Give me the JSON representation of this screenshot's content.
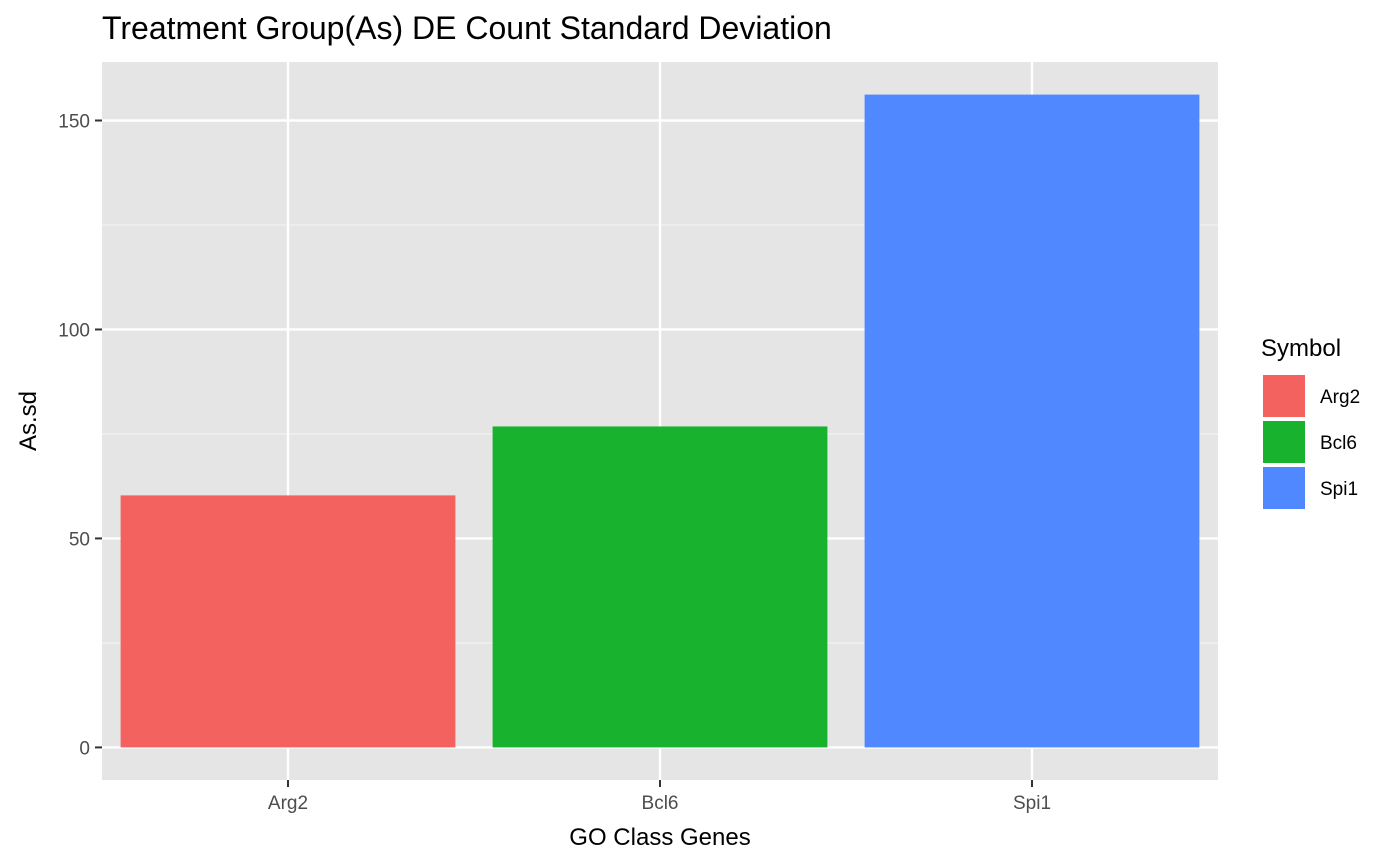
{
  "chart_data": {
    "type": "bar",
    "title": "Treatment Group(As) DE Count Standard Deviation",
    "xlabel": "GO Class Genes",
    "ylabel": "As.sd",
    "categories": [
      "Arg2",
      "Bcl6",
      "Spi1"
    ],
    "values": [
      60.3,
      76.8,
      156.2
    ],
    "colors": [
      "#F46260",
      "#19B22F",
      "#5088FF"
    ],
    "ylim": [
      -7.8,
      164
    ],
    "yticks": [
      0,
      50,
      100,
      150
    ],
    "grid": true,
    "panel_background": "#E5E5E5",
    "legend": {
      "title": "Symbol",
      "position": "right",
      "entries": [
        "Arg2",
        "Bcl6",
        "Spi1"
      ]
    }
  }
}
